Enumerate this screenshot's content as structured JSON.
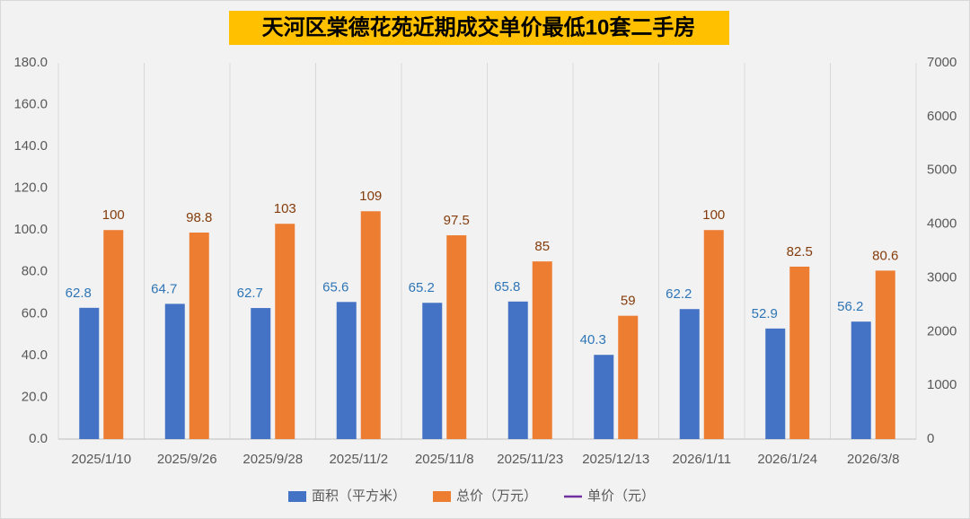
{
  "chart_data": {
    "type": "bar",
    "title": "天河区棠德花苑近期成交单价最低10套二手房",
    "categories": [
      "2025/1/10",
      "2025/9/26",
      "2025/9/28",
      "2025/11/2",
      "2025/11/8",
      "2025/11/23",
      "2025/12/13",
      "2026/1/11",
      "2026/1/24",
      "2026/3/8"
    ],
    "series": [
      {
        "name": "面积（平方米）",
        "color": "#4472c4",
        "label_color": "#2e75b6",
        "axis": "y",
        "values": [
          62.8,
          64.7,
          62.7,
          65.6,
          65.2,
          65.8,
          40.3,
          62.2,
          52.9,
          56.2
        ]
      },
      {
        "name": "总价（万元）",
        "color": "#ed7d31",
        "label_color": "#843c0c",
        "axis": "y",
        "values": [
          100,
          98.8,
          103,
          109,
          97.5,
          85,
          59,
          100,
          82.5,
          80.6
        ]
      },
      {
        "name": "单价（元）",
        "color": "#7030a0",
        "type": "line",
        "axis": "y2",
        "values": [
          null,
          null,
          null,
          null,
          null,
          null,
          null,
          null,
          null,
          null
        ]
      }
    ],
    "ylim": [
      0,
      180
    ],
    "yticks": [
      {
        "value": 0,
        "label": "0.0"
      },
      {
        "value": 20,
        "label": "20.0"
      },
      {
        "value": 40,
        "label": "40.0"
      },
      {
        "value": 60,
        "label": "60.0"
      },
      {
        "value": 80,
        "label": "80.0"
      },
      {
        "value": 100,
        "label": "100.0"
      },
      {
        "value": 120,
        "label": "120.0"
      },
      {
        "value": 140,
        "label": "140.0"
      },
      {
        "value": 160,
        "label": "160.0"
      },
      {
        "value": 180,
        "label": "180.0"
      }
    ],
    "y2lim": [
      0,
      7000
    ],
    "y2ticks": [
      0,
      1000,
      2000,
      3000,
      4000,
      5000,
      6000,
      7000
    ],
    "legend": "bottom"
  }
}
